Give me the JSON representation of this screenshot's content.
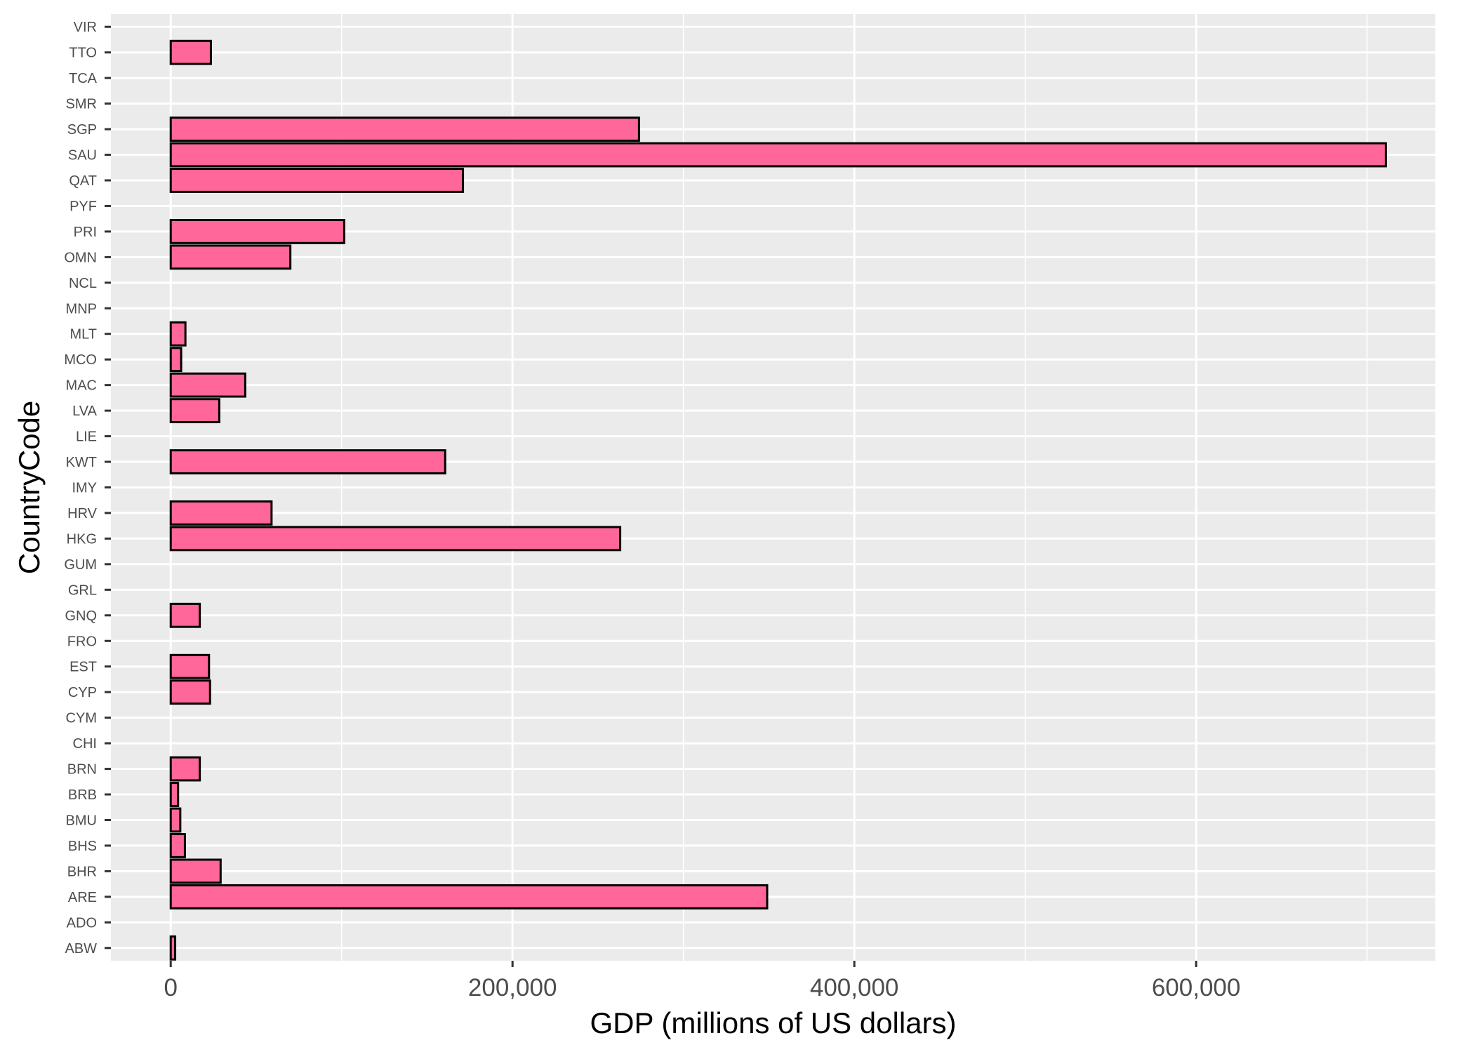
{
  "chart_data": {
    "type": "bar",
    "orientation": "horizontal",
    "xlabel": "GDP (millions of US dollars)",
    "ylabel": "CountryCode",
    "xlim": [
      -35000,
      740000
    ],
    "xticks": [
      0,
      200000,
      400000,
      600000
    ],
    "xtick_labels": [
      "0",
      "200,000",
      "400,000",
      "600,000"
    ],
    "grid": true,
    "categories": [
      "ABW",
      "ADO",
      "ARE",
      "BHR",
      "BHS",
      "BMU",
      "BRB",
      "BRN",
      "CHI",
      "CYM",
      "CYP",
      "EST",
      "FRO",
      "GNQ",
      "GRL",
      "GUM",
      "HKG",
      "HRV",
      "IMY",
      "KWT",
      "LIE",
      "LVA",
      "MAC",
      "MCO",
      "MLT",
      "MNP",
      "NCL",
      "OMN",
      "PRI",
      "PYF",
      "QAT",
      "SAU",
      "SGP",
      "SMR",
      "TCA",
      "TTO",
      "VIR"
    ],
    "values": [
      2600,
      null,
      349000,
      29200,
      8300,
      5600,
      4300,
      17000,
      null,
      null,
      23000,
      22400,
      null,
      17000,
      null,
      null,
      263000,
      59000,
      null,
      160600,
      null,
      28400,
      43600,
      6100,
      8600,
      null,
      null,
      70000,
      101500,
      null,
      171000,
      711000,
      274000,
      null,
      null,
      23500,
      null
    ],
    "colors": {
      "bar_fill": "#ff6699",
      "bar_stroke": "#000000",
      "panel": "#ebebeb",
      "grid": "#ffffff"
    }
  }
}
